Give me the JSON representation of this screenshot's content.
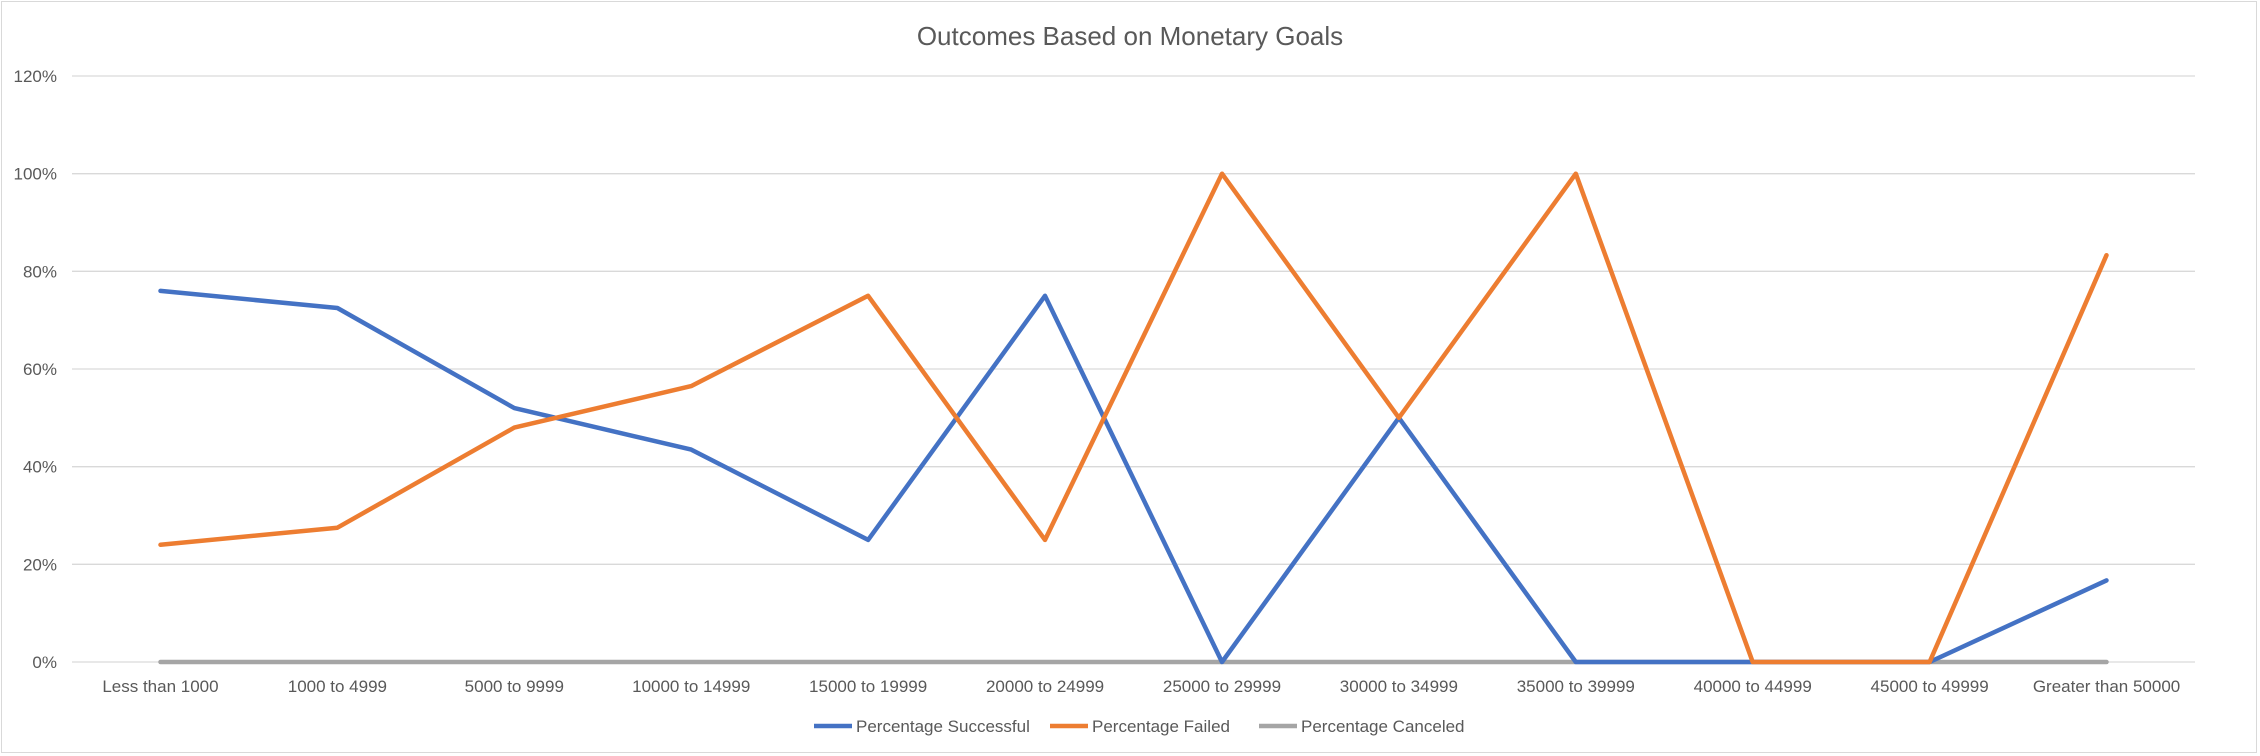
{
  "chart_data": {
    "type": "line",
    "title": "Outcomes Based on Monetary Goals",
    "xlabel": "",
    "ylabel": "",
    "ylim": [
      0,
      1.2
    ],
    "y_ticks": [
      0,
      0.2,
      0.4,
      0.6,
      0.8,
      1.0,
      1.2
    ],
    "y_tick_labels": [
      "0%",
      "20%",
      "40%",
      "60%",
      "80%",
      "100%",
      "120%"
    ],
    "grid": true,
    "legend_position": "bottom",
    "categories": [
      "Less than 1000",
      "1000 to 4999",
      "5000 to 9999",
      "10000 to 14999",
      "15000 to 19999",
      "20000 to 24999",
      "25000 to 29999",
      "30000 to 34999",
      "35000 to 39999",
      "40000 to 44999",
      "45000 to 49999",
      "Greater than 50000"
    ],
    "series": [
      {
        "name": "Percentage Successful",
        "color": "#4472c4",
        "values": [
          0.76,
          0.725,
          0.52,
          0.435,
          0.25,
          0.75,
          0.0,
          0.5,
          0.0,
          0.0,
          0.0,
          0.167
        ]
      },
      {
        "name": "Percentage Failed",
        "color": "#ed7d31",
        "values": [
          0.24,
          0.275,
          0.48,
          0.565,
          0.75,
          0.25,
          1.0,
          0.5,
          1.0,
          0.0,
          0.0,
          0.833
        ]
      },
      {
        "name": "Percentage Canceled",
        "color": "#a5a5a5",
        "values": [
          0,
          0,
          0,
          0,
          0,
          0,
          0,
          0,
          0,
          0,
          0,
          0
        ]
      }
    ]
  },
  "colors": {
    "gridline": "#d9d9d9",
    "axis": "#d9d9d9",
    "text": "#595959"
  }
}
